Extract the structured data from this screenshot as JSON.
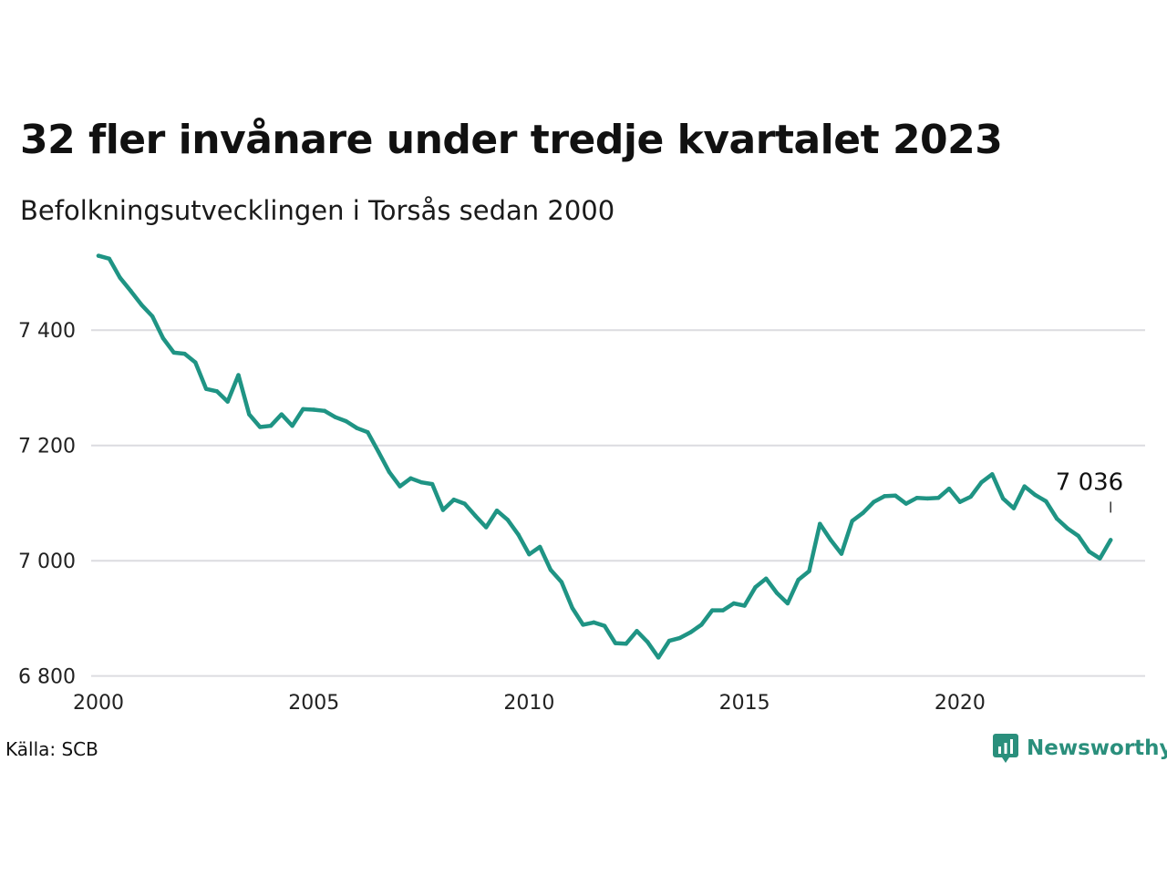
{
  "header": {
    "title": "32 fler invånare under tredje kvartalet 2023",
    "subtitle": "Befolkningsutvecklingen i Torsås sedan 2000"
  },
  "footer": {
    "source": "Källa: SCB",
    "brand": "Newsworthy",
    "brand_icon": "newsworthy-logo-icon"
  },
  "colors": {
    "line": "#1f9484",
    "brand": "#2a8f7c",
    "grid": "#dcdce0"
  },
  "chart_data": {
    "type": "line",
    "title": "32 fler invånare under tredje kvartalet 2023",
    "subtitle": "Befolkningsutvecklingen i Torsås sedan 2000",
    "xlabel": "",
    "ylabel": "",
    "x_ticks": [
      2000,
      2005,
      2010,
      2015,
      2020
    ],
    "x_tick_labels": [
      "2000",
      "2005",
      "2010",
      "2015",
      "2020"
    ],
    "y_ticks": [
      6800,
      7000,
      7200,
      7400
    ],
    "y_tick_labels": [
      "6 800",
      "7 000",
      "7 200",
      "7 400"
    ],
    "xlim": [
      2000,
      2024.3
    ],
    "ylim": [
      6790,
      7530
    ],
    "grid": "horizontal",
    "annotation": {
      "x": "2023 Q3",
      "value": 7036,
      "label": "7 036"
    },
    "series": [
      {
        "x": [
          "2000 Q1",
          "2000 Q2",
          "2000 Q3",
          "2000 Q4",
          "2001 Q1",
          "2001 Q2",
          "2001 Q3",
          "2001 Q4",
          "2002 Q1",
          "2002 Q2",
          "2002 Q3",
          "2002 Q4",
          "2003 Q1",
          "2003 Q2",
          "2003 Q3",
          "2003 Q4",
          "2004 Q1",
          "2004 Q2",
          "2004 Q3",
          "2004 Q4",
          "2005 Q1",
          "2005 Q2",
          "2005 Q3",
          "2005 Q4",
          "2006 Q1",
          "2006 Q2",
          "2006 Q3",
          "2006 Q4",
          "2007 Q1",
          "2007 Q2",
          "2007 Q3",
          "2007 Q4",
          "2008 Q1",
          "2008 Q2",
          "2008 Q3",
          "2008 Q4",
          "2009 Q1",
          "2009 Q2",
          "2009 Q3",
          "2009 Q4",
          "2010 Q1",
          "2010 Q2",
          "2010 Q3",
          "2010 Q4",
          "2011 Q1",
          "2011 Q2",
          "2011 Q3",
          "2011 Q4",
          "2012 Q1",
          "2012 Q2",
          "2012 Q3",
          "2012 Q4",
          "2013 Q1",
          "2013 Q2",
          "2013 Q3",
          "2013 Q4",
          "2014 Q1",
          "2014 Q2",
          "2014 Q3",
          "2014 Q4",
          "2015 Q1",
          "2015 Q2",
          "2015 Q3",
          "2015 Q4",
          "2016 Q1",
          "2016 Q2",
          "2016 Q3",
          "2016 Q4",
          "2017 Q1",
          "2017 Q2",
          "2017 Q3",
          "2017 Q4",
          "2018 Q1",
          "2018 Q2",
          "2018 Q3",
          "2018 Q4",
          "2019 Q1",
          "2019 Q2",
          "2019 Q3",
          "2019 Q4",
          "2020 Q1",
          "2020 Q2",
          "2020 Q3",
          "2020 Q4",
          "2021 Q1",
          "2021 Q2",
          "2021 Q3",
          "2021 Q4",
          "2022 Q1",
          "2022 Q2",
          "2022 Q3",
          "2022 Q4",
          "2023 Q1",
          "2023 Q2",
          "2023 Q3"
        ],
        "values": [
          7529,
          7524,
          7491,
          7468,
          7444,
          7424,
          7386,
          7361,
          7359,
          7344,
          7298,
          7294,
          7276,
          7322,
          7254,
          7232,
          7234,
          7254,
          7234,
          7263,
          7262,
          7260,
          7249,
          7242,
          7230,
          7223,
          7189,
          7154,
          7129,
          7143,
          7136,
          7133,
          7088,
          7106,
          7099,
          7078,
          7058,
          7087,
          7071,
          7045,
          7011,
          7024,
          6984,
          6963,
          6918,
          6889,
          6893,
          6887,
          6857,
          6856,
          6878,
          6859,
          6832,
          6861,
          6866,
          6876,
          6889,
          6914,
          6914,
          6926,
          6922,
          6954,
          6969,
          6944,
          6926,
          6967,
          6982,
          7064,
          7036,
          7012,
          7069,
          7083,
          7102,
          7112,
          7113,
          7099,
          7109,
          7108,
          7109,
          7125,
          7102,
          7111,
          7136,
          7150,
          7108,
          7091,
          7129,
          7114,
          7103,
          7073,
          7056,
          7043,
          7016,
          7004,
          7036
        ]
      }
    ]
  }
}
